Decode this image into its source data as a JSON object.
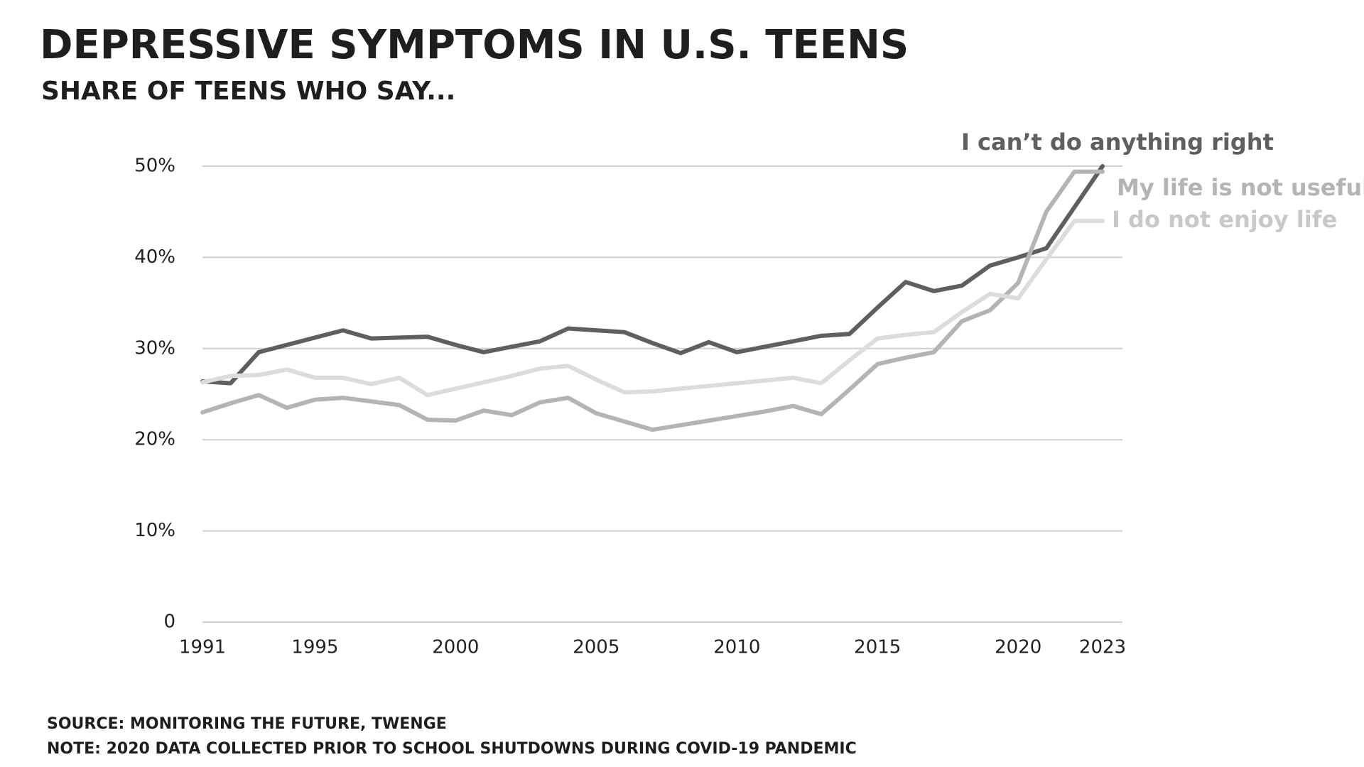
{
  "chart_data": {
    "type": "line",
    "title": "DEPRESSIVE SYMPTOMS IN U.S. TEENS",
    "subtitle": "SHARE OF TEENS WHO SAY...",
    "source": "SOURCE: MONITORING THE FUTURE, TWENGE",
    "note": "NOTE: 2020 DATA COLLECTED PRIOR TO SCHOOL SHUTDOWNS DURING COVID-19 PANDEMIC",
    "x": [
      1991,
      1992,
      1993,
      1994,
      1995,
      1996,
      1997,
      1998,
      1999,
      2000,
      2001,
      2002,
      2003,
      2004,
      2005,
      2006,
      2007,
      2008,
      2009,
      2010,
      2011,
      2012,
      2013,
      2014,
      2015,
      2016,
      2017,
      2018,
      2019,
      2020,
      2021,
      2022,
      2023
    ],
    "series": [
      {
        "name": "I can’t do anything right",
        "color": "#5f5f5f",
        "values": [
          26.4,
          26.2,
          29.6,
          30.4,
          31.2,
          32.0,
          31.1,
          31.2,
          31.3,
          30.4,
          29.6,
          30.2,
          30.8,
          32.2,
          32.0,
          31.8,
          30.6,
          29.5,
          30.7,
          29.6,
          30.2,
          30.8,
          31.4,
          31.6,
          34.5,
          37.3,
          36.3,
          36.9,
          39.1,
          40.0,
          41.0,
          45.5,
          50.0
        ]
      },
      {
        "name": "My life is not useful",
        "color": "#b4b4b4",
        "values": [
          23.0,
          24.0,
          24.9,
          23.5,
          24.4,
          24.6,
          24.2,
          23.8,
          22.2,
          22.1,
          23.2,
          22.7,
          24.1,
          24.6,
          22.9,
          22.0,
          21.1,
          21.6,
          22.1,
          22.6,
          23.1,
          23.7,
          22.8,
          25.5,
          28.3,
          29.0,
          29.6,
          33.0,
          34.2,
          37.2,
          45.0,
          49.4,
          49.4
        ]
      },
      {
        "name": "I do not enjoy life",
        "color": "#dcdcdc",
        "values": [
          26.3,
          27.0,
          27.1,
          27.7,
          26.8,
          26.8,
          26.1,
          26.8,
          24.9,
          25.6,
          26.3,
          27.0,
          27.8,
          28.1,
          26.6,
          25.2,
          25.3,
          25.6,
          25.9,
          26.2,
          26.5,
          26.8,
          26.2,
          28.7,
          31.1,
          31.5,
          31.8,
          34.0,
          36.0,
          35.5,
          39.8,
          44.0,
          44.0
        ]
      }
    ],
    "xlim": [
      1991,
      2023
    ],
    "xticks": [
      1991,
      1995,
      2000,
      2005,
      2010,
      2015,
      2020,
      2023
    ],
    "ylim": [
      0,
      50
    ],
    "yticks": [
      0,
      {
        "value": 10,
        "label": "10%"
      },
      {
        "value": 20,
        "label": "20%"
      },
      {
        "value": 30,
        "label": "30%"
      },
      {
        "value": 40,
        "label": "40%"
      },
      {
        "value": 50,
        "label": "50%"
      }
    ],
    "grid": true
  }
}
